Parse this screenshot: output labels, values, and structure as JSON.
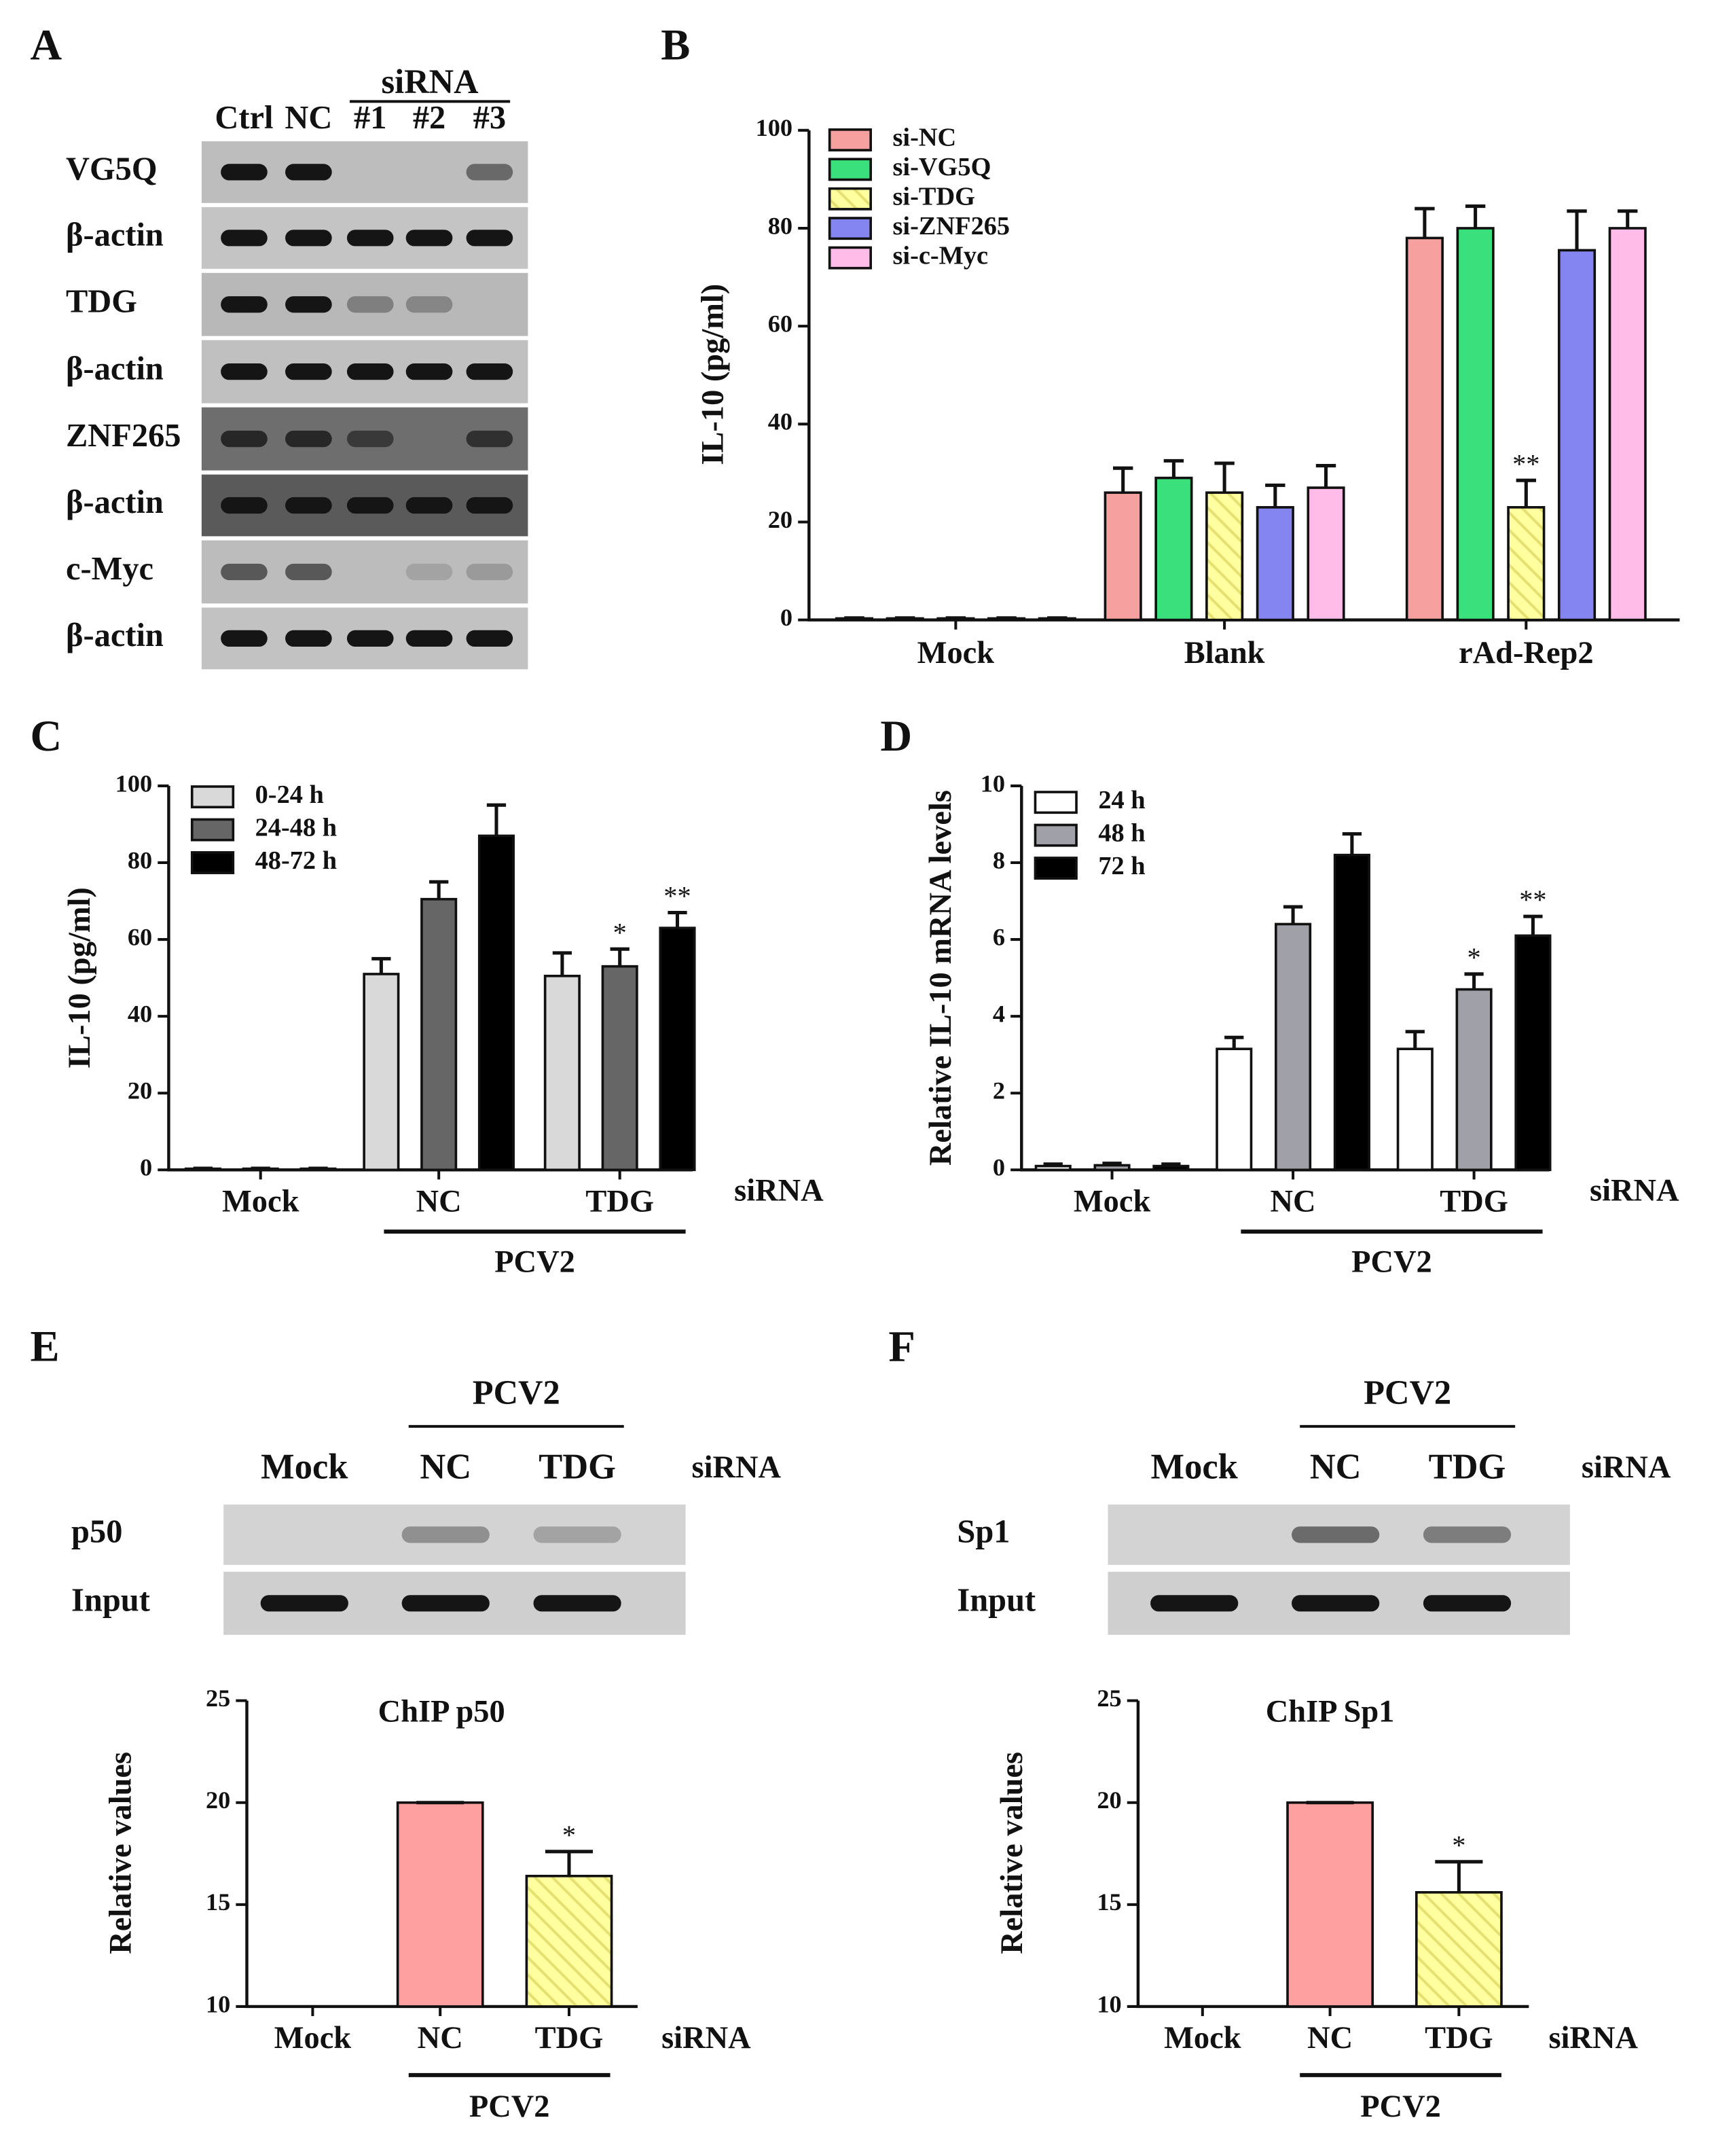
{
  "panel_labels": [
    "A",
    "B",
    "C",
    "D",
    "E",
    "F"
  ],
  "blots": [
    {
      "group": "siRNA",
      "lanes": [
        "Ctrl",
        "NC",
        "#1",
        "#2",
        "#3"
      ],
      "rows": [
        "VG5Q",
        "β-actin",
        "TDG",
        "β-actin",
        "ZNF265",
        "β-actin",
        "c-Myc",
        "β-actin"
      ]
    },
    {
      "group": "PCV2",
      "lanes": [
        "Mock",
        "NC",
        "TDG"
      ],
      "lane_caption": "siRNA",
      "rows": [
        "p50",
        "Input"
      ]
    },
    {
      "group": "PCV2",
      "lanes": [
        "Mock",
        "NC",
        "TDG"
      ],
      "lane_caption": "siRNA",
      "rows": [
        "Sp1",
        "Input"
      ]
    }
  ],
  "chart_data": [
    {
      "type": "bar",
      "ylabel": "IL-10 (pg/ml)",
      "categories": [
        "Mock",
        "Blank",
        "rAd-Rep2"
      ],
      "ylim": [
        0,
        100
      ],
      "yticks": [
        0,
        20,
        40,
        60,
        80,
        100
      ],
      "series": [
        {
          "name": "si-NC",
          "color": "#f7a0a0",
          "values": [
            0.3,
            26,
            78
          ],
          "errors": [
            0.1,
            5,
            6
          ]
        },
        {
          "name": "si-VG5Q",
          "color": "#3ae07c",
          "values": [
            0.3,
            29,
            80
          ],
          "errors": [
            0.1,
            3.5,
            4.5
          ]
        },
        {
          "name": "si-TDG",
          "color": "#ffffa0",
          "hatch": true,
          "values": [
            0.3,
            26,
            23
          ],
          "errors": [
            0.1,
            6,
            5.5
          ],
          "stars": [
            null,
            null,
            "**"
          ]
        },
        {
          "name": "si-ZNF265",
          "color": "#8585f2",
          "values": [
            0.3,
            23,
            75.5
          ],
          "errors": [
            0.1,
            4.5,
            8
          ]
        },
        {
          "name": "si-c-Myc",
          "color": "#ffbce8",
          "values": [
            0.3,
            27,
            80
          ],
          "errors": [
            0.1,
            4.5,
            3.5
          ]
        }
      ]
    },
    {
      "type": "bar",
      "ylabel": "IL-10 (pg/ml)",
      "categories": [
        "Mock",
        "NC",
        "TDG"
      ],
      "xlabel": "siRNA",
      "group_label": "PCV2",
      "ylim": [
        0,
        100
      ],
      "yticks": [
        0,
        20,
        40,
        60,
        80,
        100
      ],
      "series": [
        {
          "name": "0-24 h",
          "color": "#d9d9d9",
          "values": [
            0.3,
            51,
            50.5
          ],
          "errors": [
            0.1,
            4,
            6
          ]
        },
        {
          "name": "24-48 h",
          "color": "#666666",
          "values": [
            0.3,
            70.5,
            53
          ],
          "errors": [
            0.1,
            4.5,
            4.5
          ],
          "stars": [
            null,
            null,
            "*"
          ]
        },
        {
          "name": "48-72 h",
          "color": "#000000",
          "values": [
            0.3,
            87,
            63
          ],
          "errors": [
            0.1,
            8,
            4
          ],
          "stars": [
            null,
            null,
            "**"
          ]
        }
      ]
    },
    {
      "type": "bar",
      "ylabel": "Relative IL-10 mRNA levels",
      "categories": [
        "Mock",
        "NC",
        "TDG"
      ],
      "xlabel": "siRNA",
      "group_label": "PCV2",
      "ylim": [
        0,
        10
      ],
      "yticks": [
        0,
        2,
        4,
        6,
        8,
        10
      ],
      "series": [
        {
          "name": "24 h",
          "color": "#ffffff",
          "values": [
            0.1,
            3.15,
            3.15
          ],
          "errors": [
            0.05,
            0.3,
            0.45
          ]
        },
        {
          "name": "48 h",
          "color": "#a0a0a8",
          "values": [
            0.12,
            6.4,
            4.7
          ],
          "errors": [
            0.05,
            0.45,
            0.4
          ],
          "stars": [
            null,
            null,
            "*"
          ]
        },
        {
          "name": "72 h",
          "color": "#000000",
          "values": [
            0.1,
            8.2,
            6.1
          ],
          "errors": [
            0.05,
            0.55,
            0.5
          ],
          "stars": [
            null,
            null,
            "**"
          ]
        }
      ]
    },
    {
      "type": "bar",
      "title": "ChIP p50",
      "ylabel": "Relative values",
      "categories": [
        "Mock",
        "NC",
        "TDG"
      ],
      "xlabel": "siRNA",
      "group_label": "PCV2",
      "ylim": [
        10,
        25
      ],
      "yticks": [
        10,
        15,
        20,
        25
      ],
      "values": [
        null,
        20,
        16.4
      ],
      "errors": [
        null,
        0,
        1.2
      ],
      "colors": [
        null,
        "#ffa0a0",
        "#ffffa0"
      ],
      "hatch": [
        false,
        false,
        true
      ],
      "stars": [
        null,
        null,
        "*"
      ]
    },
    {
      "type": "bar",
      "title": "ChIP Sp1",
      "ylabel": "Relative values",
      "categories": [
        "Mock",
        "NC",
        "TDG"
      ],
      "xlabel": "siRNA",
      "group_label": "PCV2",
      "ylim": [
        10,
        25
      ],
      "yticks": [
        10,
        15,
        20,
        25
      ],
      "values": [
        null,
        20,
        15.6
      ],
      "errors": [
        null,
        0,
        1.5
      ],
      "colors": [
        null,
        "#ffa0a0",
        "#ffffa0"
      ],
      "hatch": [
        false,
        false,
        true
      ],
      "stars": [
        null,
        null,
        "*"
      ]
    }
  ]
}
